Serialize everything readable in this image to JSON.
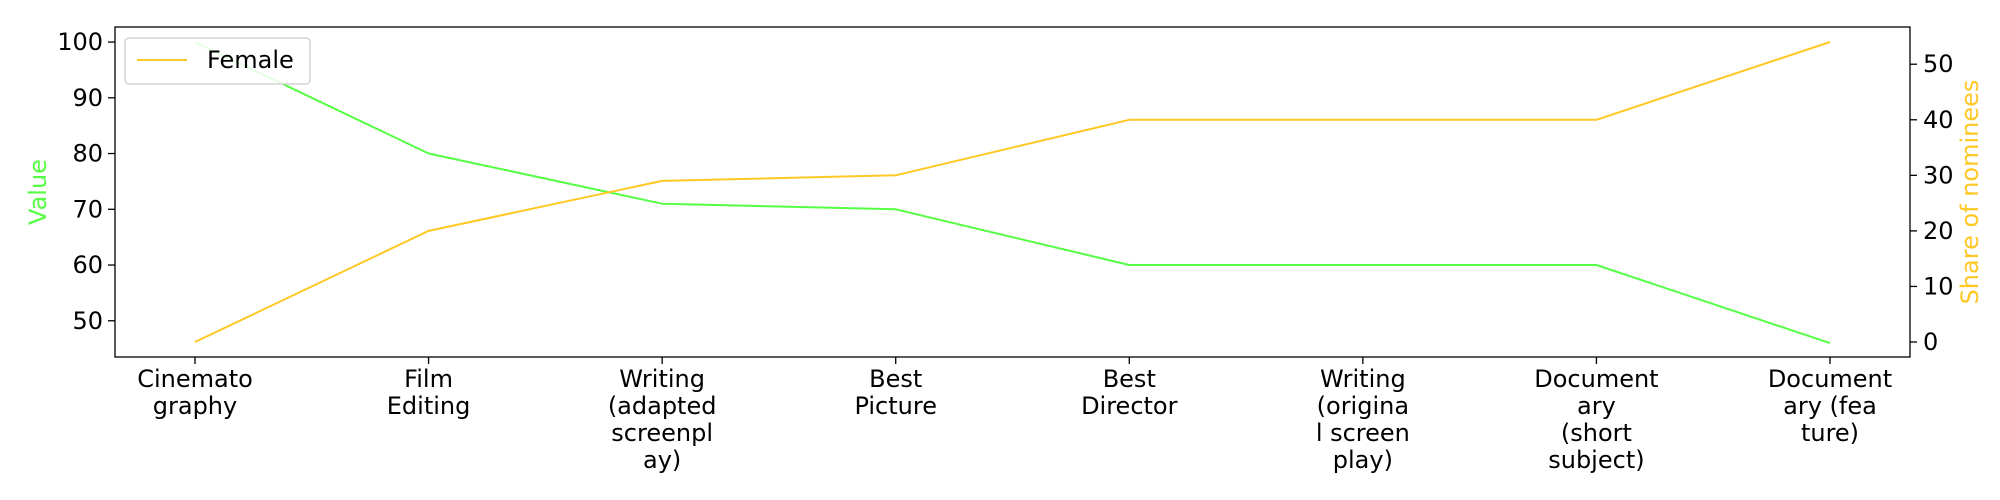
{
  "chart_data": {
    "type": "line",
    "categories": [
      "Cinemato\ngraphy",
      "Film\nEditing",
      "Writing\n(adapted\nscreenpl\nay)",
      "Best\nPicture",
      "Best\nDirector",
      "Writing\n(origina\nl screen\nplay)",
      "Document\nary\n(short\nsubject)",
      "Document\nary (fea\nture)"
    ],
    "series": [
      {
        "axis": "left",
        "color": "#55ff44",
        "values": [
          100,
          80,
          71,
          70,
          60,
          60,
          60,
          46
        ]
      },
      {
        "name": "Female",
        "axis": "right",
        "color": "#ffc825",
        "values": [
          0,
          20,
          29,
          30,
          40,
          40,
          40,
          54
        ]
      }
    ],
    "left_axis": {
      "label": "Value",
      "color": "#55ff44",
      "ticks": [
        50,
        60,
        70,
        80,
        90,
        100
      ],
      "range": [
        43.5,
        102.7
      ]
    },
    "right_axis": {
      "label": "Share of nominees",
      "color": "#ffc825",
      "ticks": [
        0,
        10,
        20,
        30,
        40,
        50
      ],
      "range": [
        -2.7,
        56.7
      ]
    },
    "legend": {
      "position": "top-left",
      "entries": [
        "Female"
      ]
    },
    "grid": false
  }
}
